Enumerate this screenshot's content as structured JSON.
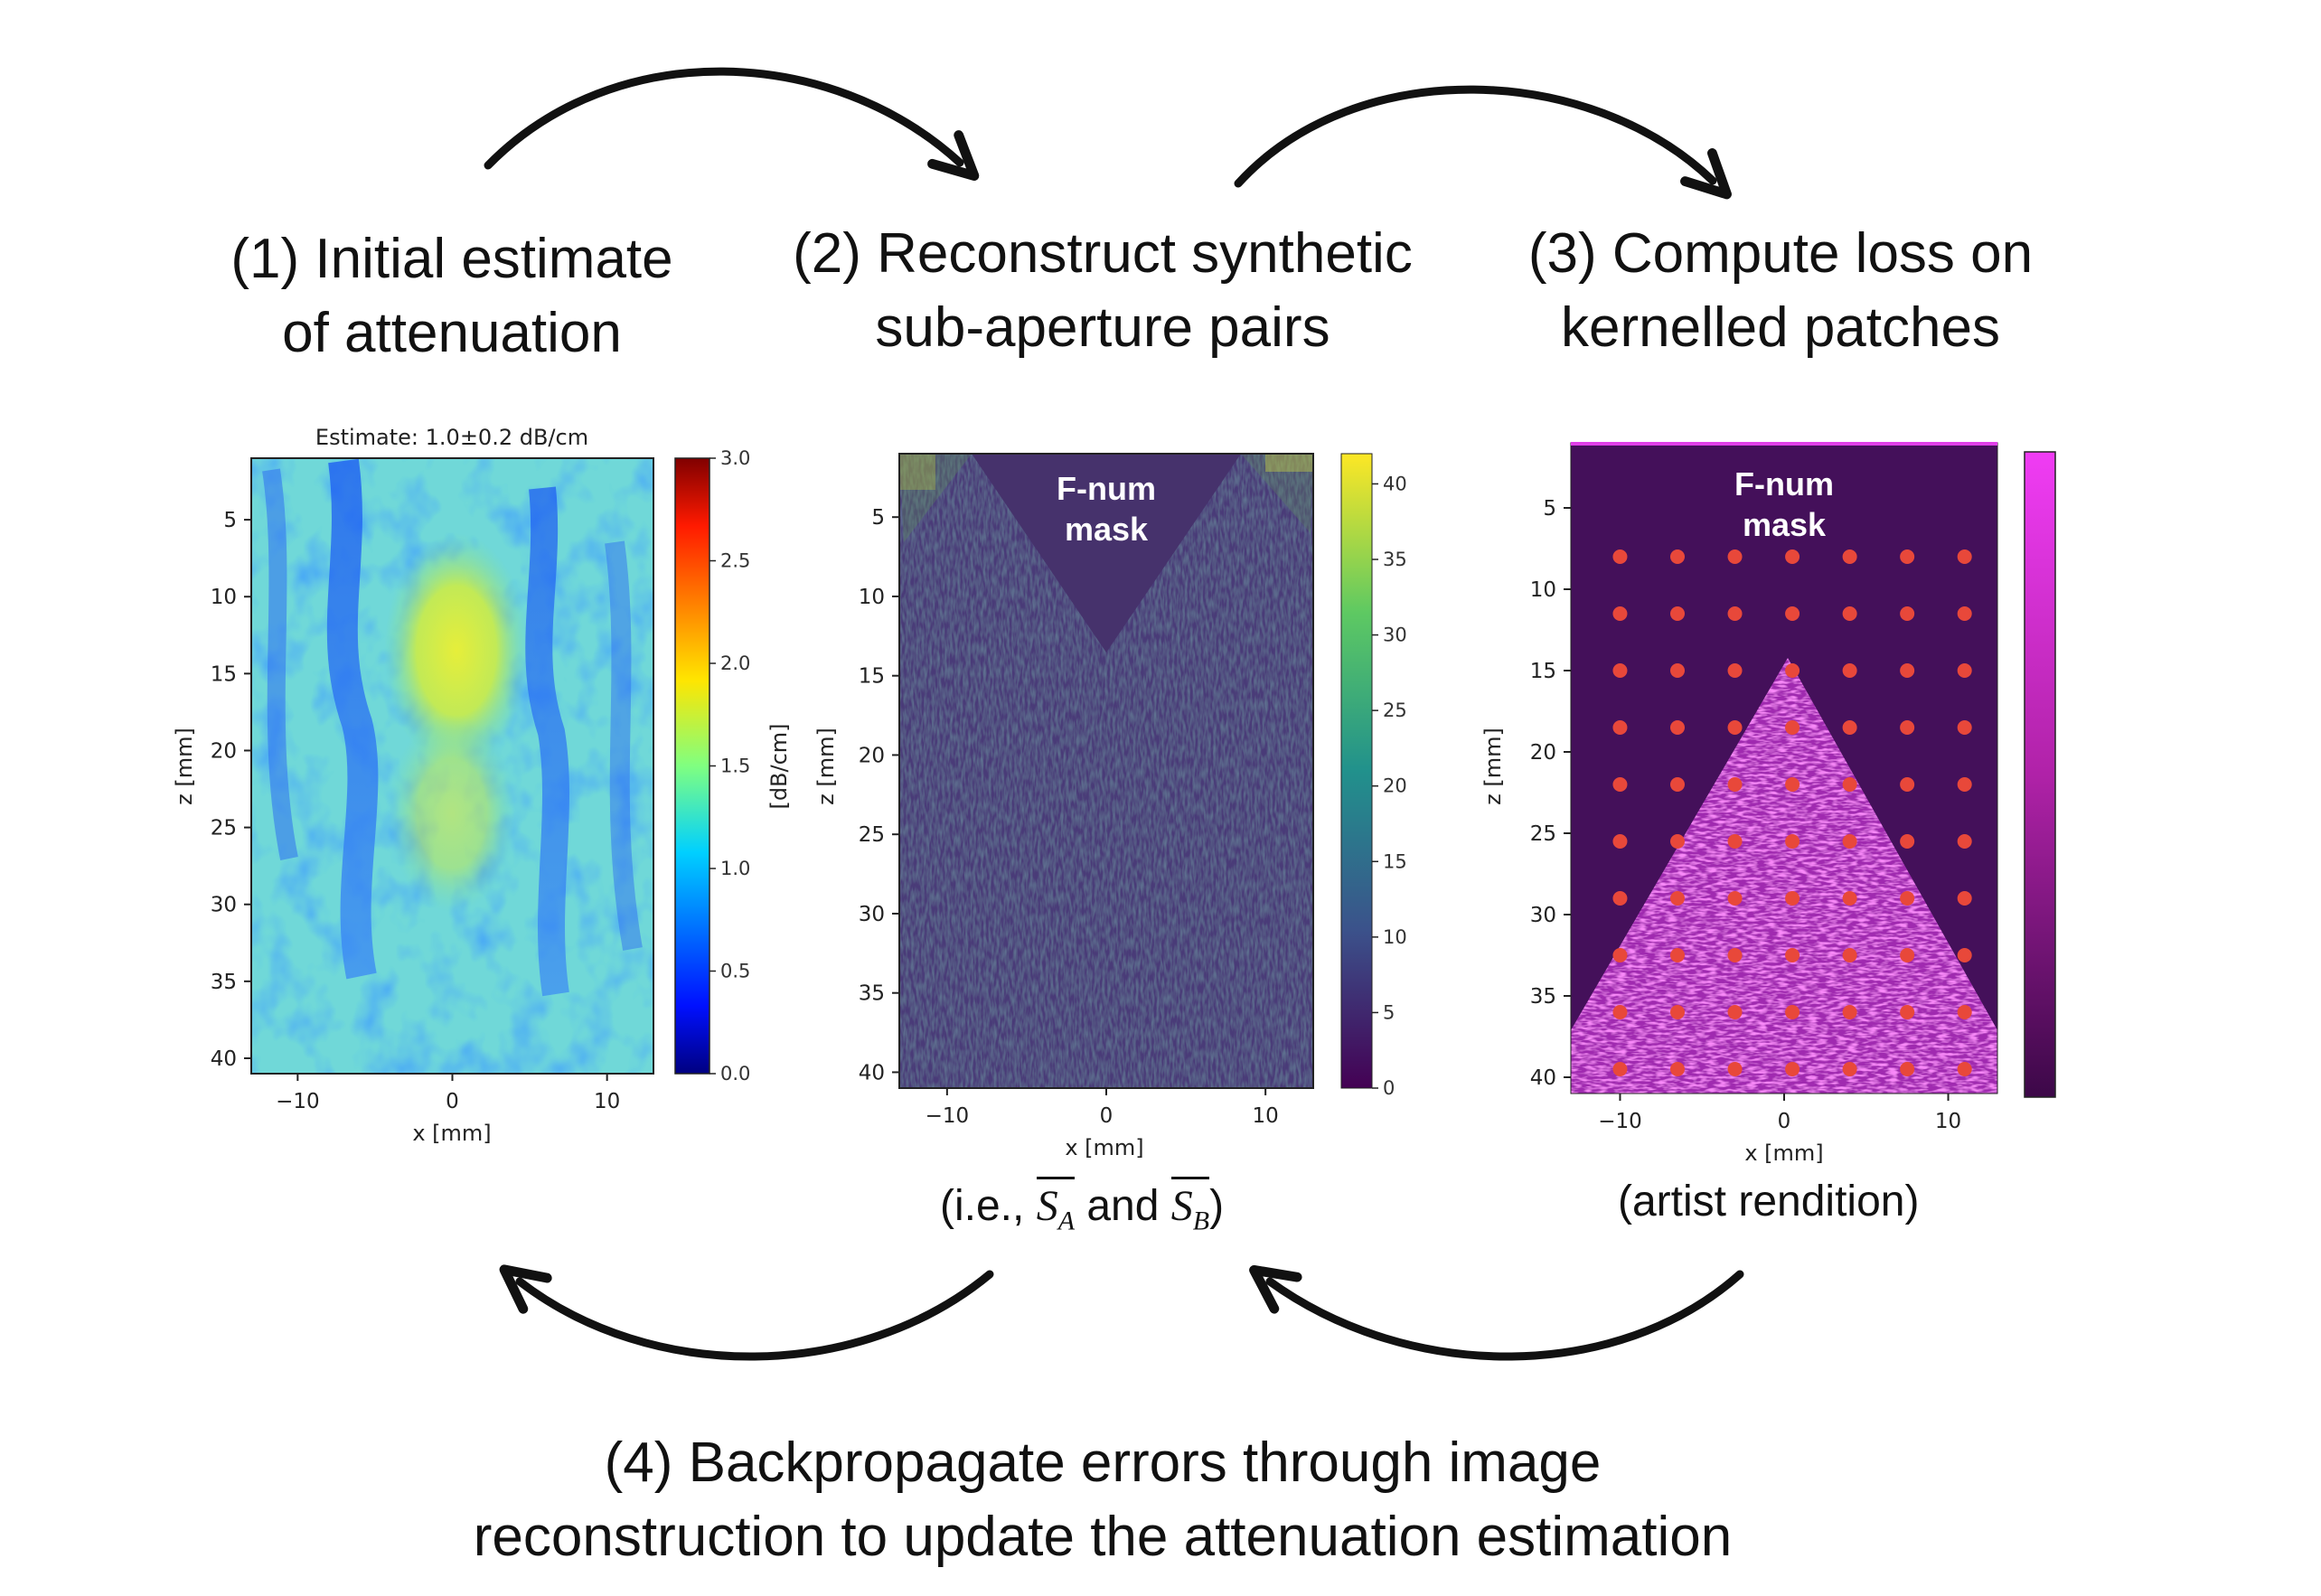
{
  "steps": {
    "step1": {
      "line1": "(1) Initial estimate",
      "line2": "of attenuation"
    },
    "step2": {
      "line1": "(2) Reconstruct synthetic",
      "line2": "sub-aperture pairs"
    },
    "step3": {
      "line1": "(3) Compute loss on",
      "line2": "kernelled patches"
    },
    "step4": {
      "line1": "(4) Backpropagate errors through image",
      "line2": "reconstruction to update the attenuation estimation"
    }
  },
  "captions": {
    "panel2_prefix": "(i.e., ",
    "panel2_a_letter": "S",
    "panel2_a_sub": "A",
    "panel2_mid": " and ",
    "panel2_b_letter": "S",
    "panel2_b_sub": "B",
    "panel2_suffix": ")",
    "panel3": "(artist rendition)"
  },
  "chart_data": [
    {
      "type": "heatmap",
      "title": "Estimate: 1.0±0.2 dB/cm",
      "xlabel": "x [mm]",
      "ylabel": "z [mm]",
      "xticks": [
        "−10",
        "0",
        "10"
      ],
      "xtick_values": [
        -10,
        0,
        10
      ],
      "yticks": [
        "5",
        "10",
        "15",
        "20",
        "25",
        "30",
        "35",
        "40"
      ],
      "ytick_values": [
        5,
        10,
        15,
        20,
        25,
        30,
        35,
        40
      ],
      "xlim": [
        -13,
        13
      ],
      "ylim": [
        1,
        41
      ],
      "colorbar": {
        "label": "[dB/cm]",
        "ticks": [
          "3.0",
          "2.5",
          "2.0",
          "1.5",
          "1.0",
          "0.5",
          "0.0"
        ],
        "tick_values": [
          3.0,
          2.5,
          2.0,
          1.5,
          1.0,
          0.5,
          0.0
        ],
        "range": [
          0,
          3.0
        ],
        "colormap": "jet"
      },
      "mean_value": 1.0,
      "std_value": 0.2
    },
    {
      "type": "heatmap",
      "annotation_line1": "F-num",
      "annotation_line2": "mask",
      "xlabel": "x [mm]",
      "ylabel": "z [mm]",
      "ylabel_shown": "z [mm]",
      "xticks": [
        "−10",
        "0",
        "10"
      ],
      "xtick_values": [
        -10,
        0,
        10
      ],
      "yticks": [
        "5",
        "10",
        "15",
        "20",
        "25",
        "30",
        "35",
        "40"
      ],
      "ytick_values": [
        5,
        10,
        15,
        20,
        25,
        30,
        35,
        40
      ],
      "xlim": [
        -13,
        13
      ],
      "ylim": [
        1,
        41
      ],
      "colorbar": {
        "ticks": [
          "40",
          "35",
          "30",
          "25",
          "20",
          "15",
          "10",
          "5",
          "0"
        ],
        "tick_values": [
          40,
          35,
          30,
          25,
          20,
          15,
          10,
          5,
          0
        ],
        "range": [
          0,
          42
        ],
        "colormap": "viridis"
      }
    },
    {
      "type": "heatmap",
      "annotation_line1": "F-num",
      "annotation_line2": "mask",
      "xlabel": "x [mm]",
      "ylabel": "z [mm]",
      "xticks": [
        "−10",
        "0",
        "10"
      ],
      "xtick_values": [
        -10,
        0,
        10
      ],
      "yticks": [
        "5",
        "10",
        "15",
        "20",
        "25",
        "30",
        "35",
        "40"
      ],
      "ytick_values": [
        5,
        10,
        15,
        20,
        25,
        30,
        35,
        40
      ],
      "xlim": [
        -13,
        13
      ],
      "ylim": [
        1,
        41
      ],
      "kernel_patch_centers": {
        "x_mm": [
          -10,
          -6.5,
          -3,
          0.5,
          4,
          7.5,
          11
        ],
        "z_mm": [
          8,
          11.5,
          15,
          18.5,
          22,
          25.5,
          29,
          32.5,
          36,
          39.5
        ]
      },
      "colorbar": {
        "colormap": "magenta"
      }
    }
  ],
  "colors": {
    "arrow": "#111111",
    "patch_dot": "#e8483a",
    "mask_purple": "#44105a",
    "magenta": "#ee3cf0",
    "viridis_dark": "#46326c"
  }
}
